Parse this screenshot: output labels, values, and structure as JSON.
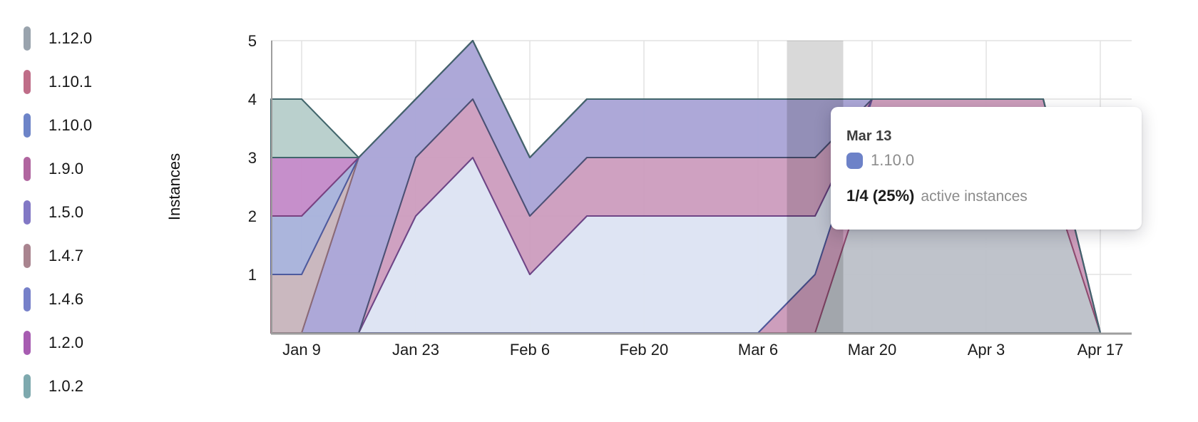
{
  "page": {
    "background": "#ffffff"
  },
  "chart_data": {
    "type": "area",
    "stacked": true,
    "ylabel": "Instances",
    "y_ticks": [
      1,
      2,
      3,
      4,
      5
    ],
    "ylim": [
      0,
      5
    ],
    "grid": true,
    "legend_position": "left",
    "x": [
      "Jan 2",
      "Jan 9",
      "Jan 16",
      "Jan 23",
      "Jan 30",
      "Feb 6",
      "Feb 13",
      "Feb 20",
      "Feb 27",
      "Mar 6",
      "Mar 13",
      "Mar 20",
      "Mar 27",
      "Apr 3",
      "Apr 10",
      "Apr 17"
    ],
    "x_axis_labeled_ticks": [
      "Jan 9",
      "Jan 23",
      "Feb 6",
      "Feb 20",
      "Mar 6",
      "Mar 20",
      "Apr 3",
      "Apr 17"
    ],
    "series": [
      {
        "name": "1.12.0",
        "legend_color": "#99a3ad",
        "fill": "#bcc1c9",
        "stroke": "#5f6a7a",
        "values": [
          0,
          0,
          0,
          0,
          0,
          0,
          0,
          0,
          0,
          0,
          0,
          3,
          3,
          3,
          3,
          0
        ]
      },
      {
        "name": "1.10.1",
        "legend_color": "#bf6d88",
        "fill": "#cb9ab9",
        "stroke": "#8f4a6f",
        "values": [
          0,
          0,
          0,
          0,
          0,
          0,
          0,
          0,
          0,
          0,
          1,
          1,
          1,
          1,
          1,
          0
        ]
      },
      {
        "name": "1.10.0",
        "legend_color": "#6d84c8",
        "fill": "#dde3f3",
        "stroke": "#4e589b",
        "values": [
          0,
          0,
          0,
          2,
          3,
          1,
          2,
          2,
          2,
          2,
          1,
          0,
          0,
          0,
          0,
          0
        ]
      },
      {
        "name": "1.9.0",
        "legend_color": "#b0659f",
        "fill": "#cd9dbe",
        "stroke": "#6f4586",
        "values": [
          0,
          0,
          0,
          1,
          1,
          1,
          1,
          1,
          1,
          1,
          1,
          0,
          0,
          0,
          0,
          0
        ]
      },
      {
        "name": "1.5.0",
        "legend_color": "#8278c5",
        "fill": "#aaa4d6",
        "stroke": "#4b5174",
        "values": [
          0,
          0,
          3,
          1,
          1,
          1,
          1,
          1,
          1,
          1,
          1,
          0,
          0,
          0,
          0,
          0
        ]
      },
      {
        "name": "1.4.7",
        "legend_color": "#a9848f",
        "fill": "#c8b5bc",
        "stroke": "#8c6a77",
        "values": [
          1,
          1,
          0,
          0,
          0,
          0,
          0,
          0,
          0,
          0,
          0,
          0,
          0,
          0,
          0,
          0
        ]
      },
      {
        "name": "1.4.6",
        "legend_color": "#7680c9",
        "fill": "#a8b2db",
        "stroke": "#4d5a9e",
        "values": [
          1,
          1,
          0,
          0,
          0,
          0,
          0,
          0,
          0,
          0,
          0,
          0,
          0,
          0,
          0,
          0
        ]
      },
      {
        "name": "1.2.0",
        "legend_color": "#a75cb1",
        "fill": "#c48ac9",
        "stroke": "#7a4180",
        "values": [
          1,
          1,
          0,
          0,
          0,
          0,
          0,
          0,
          0,
          0,
          0,
          0,
          0,
          0,
          0,
          0
        ]
      },
      {
        "name": "1.0.2",
        "legend_color": "#7ea9ae",
        "fill": "#b7cecb",
        "stroke": "#42666c",
        "values": [
          1,
          1,
          0,
          0,
          0,
          0,
          0,
          0,
          0,
          0,
          0,
          0,
          0,
          0,
          0,
          0
        ]
      }
    ],
    "hover": {
      "x_label": "Mar 13",
      "band_color": "rgba(0,0,0,0.15)"
    },
    "tooltip": {
      "date": "Mar 13",
      "series_name": "1.10.0",
      "swatch_color": "#6d82c8",
      "value_text": "1/4 (25%)",
      "value_suffix": "active instances"
    }
  }
}
